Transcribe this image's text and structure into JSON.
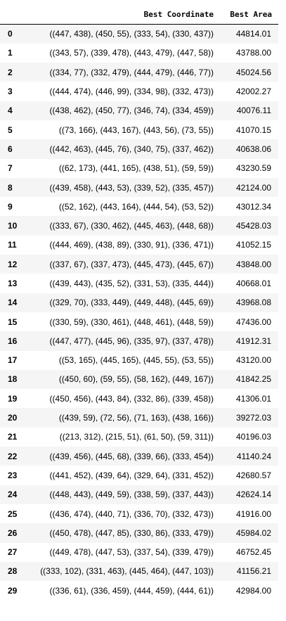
{
  "table": {
    "columns": [
      "",
      "Best Coordinate",
      "Best Area"
    ],
    "rows": [
      {
        "index": "0",
        "coordinate": "((447, 438), (450, 55), (333, 54), (330, 437))",
        "area": "44814.01"
      },
      {
        "index": "1",
        "coordinate": "((343, 57), (339, 478), (443, 479), (447, 58))",
        "area": "43788.00"
      },
      {
        "index": "2",
        "coordinate": "((334, 77), (332, 479), (444, 479), (446, 77))",
        "area": "45024.56"
      },
      {
        "index": "3",
        "coordinate": "((444, 474), (446, 99), (334, 98), (332, 473))",
        "area": "42002.27"
      },
      {
        "index": "4",
        "coordinate": "((438, 462), (450, 77), (346, 74), (334, 459))",
        "area": "40076.11"
      },
      {
        "index": "5",
        "coordinate": "((73, 166), (443, 167), (443, 56), (73, 55))",
        "area": "41070.15"
      },
      {
        "index": "6",
        "coordinate": "((442, 463), (445, 76), (340, 75), (337, 462))",
        "area": "40638.06"
      },
      {
        "index": "7",
        "coordinate": "((62, 173), (441, 165), (438, 51), (59, 59))",
        "area": "43230.59"
      },
      {
        "index": "8",
        "coordinate": "((439, 458), (443, 53), (339, 52), (335, 457))",
        "area": "42124.00"
      },
      {
        "index": "9",
        "coordinate": "((52, 162), (443, 164), (444, 54), (53, 52))",
        "area": "43012.34"
      },
      {
        "index": "10",
        "coordinate": "((333, 67), (330, 462), (445, 463), (448, 68))",
        "area": "45428.03"
      },
      {
        "index": "11",
        "coordinate": "((444, 469), (438, 89), (330, 91), (336, 471))",
        "area": "41052.15"
      },
      {
        "index": "12",
        "coordinate": "((337, 67), (337, 473), (445, 473), (445, 67))",
        "area": "43848.00"
      },
      {
        "index": "13",
        "coordinate": "((439, 443), (435, 52), (331, 53), (335, 444))",
        "area": "40668.01"
      },
      {
        "index": "14",
        "coordinate": "((329, 70), (333, 449), (449, 448), (445, 69))",
        "area": "43968.08"
      },
      {
        "index": "15",
        "coordinate": "((330, 59), (330, 461), (448, 461), (448, 59))",
        "area": "47436.00"
      },
      {
        "index": "16",
        "coordinate": "((447, 477), (445, 96), (335, 97), (337, 478))",
        "area": "41912.31"
      },
      {
        "index": "17",
        "coordinate": "((53, 165), (445, 165), (445, 55), (53, 55))",
        "area": "43120.00"
      },
      {
        "index": "18",
        "coordinate": "((450, 60), (59, 55), (58, 162), (449, 167))",
        "area": "41842.25"
      },
      {
        "index": "19",
        "coordinate": "((450, 456), (443, 84), (332, 86), (339, 458))",
        "area": "41306.01"
      },
      {
        "index": "20",
        "coordinate": "((439, 59), (72, 56), (71, 163), (438, 166))",
        "area": "39272.03"
      },
      {
        "index": "21",
        "coordinate": "((213, 312), (215, 51), (61, 50), (59, 311))",
        "area": "40196.03"
      },
      {
        "index": "22",
        "coordinate": "((439, 456), (445, 68), (339, 66), (333, 454))",
        "area": "41140.24"
      },
      {
        "index": "23",
        "coordinate": "((441, 452), (439, 64), (329, 64), (331, 452))",
        "area": "42680.57"
      },
      {
        "index": "24",
        "coordinate": "((448, 443), (449, 59), (338, 59), (337, 443))",
        "area": "42624.14"
      },
      {
        "index": "25",
        "coordinate": "((436, 474), (440, 71), (336, 70), (332, 473))",
        "area": "41916.00"
      },
      {
        "index": "26",
        "coordinate": "((450, 478), (447, 85), (330, 86), (333, 479))",
        "area": "45984.02"
      },
      {
        "index": "27",
        "coordinate": "((449, 478), (447, 53), (337, 54), (339, 479))",
        "area": "46752.45"
      },
      {
        "index": "28",
        "coordinate": "((333, 102), (331, 463), (445, 464), (447, 103))",
        "area": "41156.21"
      },
      {
        "index": "29",
        "coordinate": "((336, 61), (336, 459), (444, 459), (444, 61))",
        "area": "42984.00"
      }
    ]
  }
}
